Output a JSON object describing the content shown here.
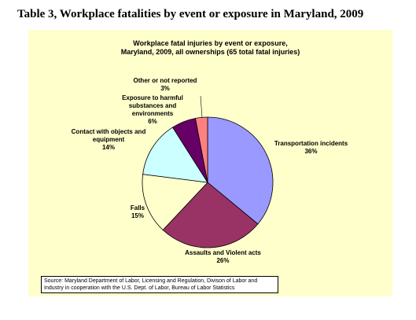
{
  "page_title": "Table 3, Workplace fatalities by event or exposure in Maryland, 2009",
  "chart_data": {
    "type": "pie",
    "title_line1": "Workplace fatal injuries by event or exposure,",
    "title_line2": "Maryland, 2009, all ownerships (65 total fatal injuries)",
    "slices": [
      {
        "label": "Transportation incidents",
        "value": 36,
        "value_label": "36%",
        "color": "#9999ff"
      },
      {
        "label": "Assaults and Violent acts",
        "value": 26,
        "value_label": "26%",
        "color": "#993366"
      },
      {
        "label": "Falls",
        "value": 15,
        "value_label": "15%",
        "color": "#ffffcc"
      },
      {
        "label": "Contact with objects and equipment",
        "value": 14,
        "value_label": "14%",
        "color": "#ccffff"
      },
      {
        "label": "Exposure to harmful substances and environments",
        "value": 6,
        "value_label": "6%",
        "color": "#660066"
      },
      {
        "label": "Other or not reported",
        "value": 3,
        "value_label": "3%",
        "color": "#ff8080"
      }
    ]
  },
  "source_note": "Source: Maryland Department of Labor, Licensing and Regulation,  Divison of Labor and Industry in cooperation with the U.S. Dept. of Labor, Bureau of Labor Statistics"
}
